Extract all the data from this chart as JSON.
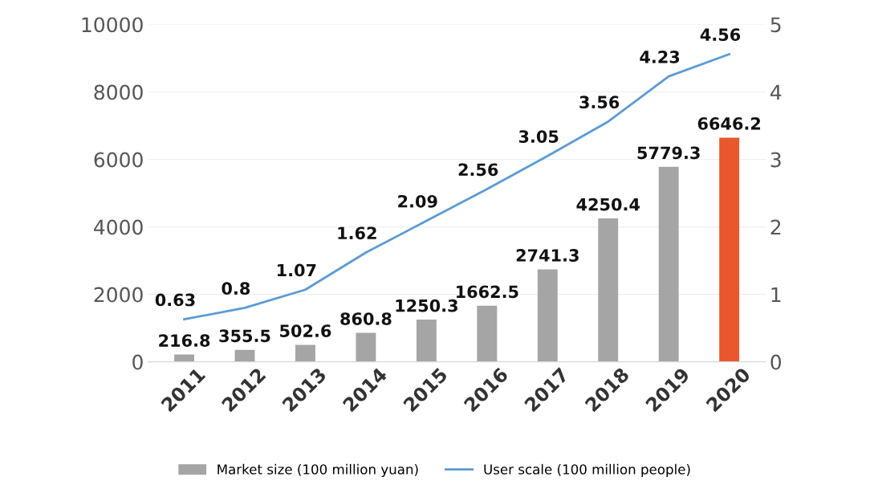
{
  "chart_data": {
    "type": "bar",
    "categories": [
      "2011",
      "2012",
      "2013",
      "2014",
      "2015",
      "2016",
      "2017",
      "2018",
      "2019",
      "2020"
    ],
    "series": [
      {
        "name": "Market size (100 million yuan)",
        "color": "#a5a5a5",
        "colors": [
          "#a5a5a5",
          "#a5a5a5",
          "#a5a5a5",
          "#a5a5a5",
          "#a5a5a5",
          "#a5a5a5",
          "#a5a5a5",
          "#a5a5a5",
          "#a5a5a5",
          "#e8572e"
        ],
        "values": [
          216.8,
          355.5,
          502.6,
          860.8,
          1250.3,
          1662.5,
          2741.3,
          4250.4,
          5779.3,
          6646.2
        ]
      },
      {
        "name": "User scale (100 million people)",
        "type": "line",
        "axis": "y2",
        "color": "#5b9bd5",
        "values": [
          0.63,
          0.8,
          1.07,
          1.62,
          2.09,
          2.56,
          3.05,
          3.56,
          4.23,
          4.56
        ]
      }
    ],
    "ylim": [
      0,
      10000
    ],
    "yticks": [
      0,
      2000,
      4000,
      6000,
      8000,
      10000
    ],
    "y2lim": [
      0,
      5
    ],
    "y2ticks": [
      0,
      1,
      2,
      3,
      4,
      5
    ],
    "grid": "y",
    "legend": "bottom",
    "data_labels": true,
    "marker": "none",
    "line_style": "solid"
  }
}
